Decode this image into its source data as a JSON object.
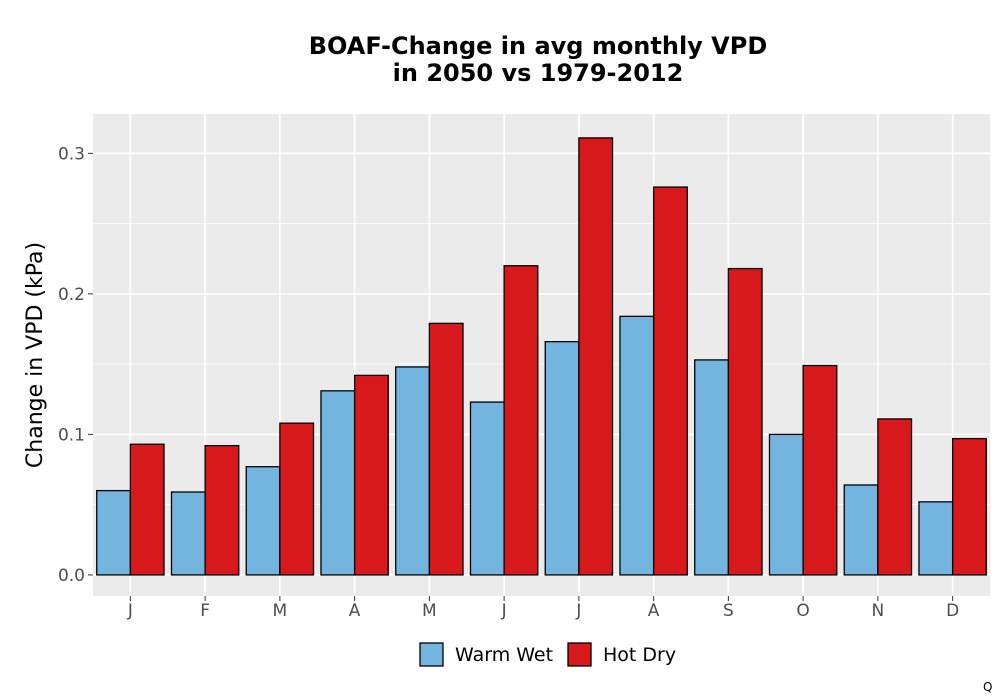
{
  "chart_data": {
    "type": "bar",
    "title_line1": "BOAF-Change in avg monthly VPD",
    "title_line2": "in 2050 vs 1979-2012",
    "xlabel": "",
    "ylabel": "Change in VPD (kPa)",
    "ylim": [
      -0.015,
      0.328
    ],
    "yticks": [
      0.0,
      0.1,
      0.2,
      0.3
    ],
    "ytick_labels": [
      "0.0",
      "0.1",
      "0.2",
      "0.3"
    ],
    "categories": [
      "J",
      "F",
      "M",
      "A",
      "M",
      "J",
      "J",
      "A",
      "S",
      "O",
      "N",
      "D"
    ],
    "series": [
      {
        "name": "Warm Wet",
        "color": "#74b5e0",
        "values": [
          0.06,
          0.059,
          0.077,
          0.131,
          0.148,
          0.123,
          0.166,
          0.184,
          0.153,
          0.1,
          0.064,
          0.052
        ]
      },
      {
        "name": "Hot Dry",
        "color": "#d7191c",
        "values": [
          0.093,
          0.092,
          0.108,
          0.142,
          0.179,
          0.22,
          0.311,
          0.276,
          0.218,
          0.149,
          0.111,
          0.097
        ]
      }
    ],
    "grid": true,
    "legend_position": "bottom",
    "panel_background": "#ebebeb",
    "gridline_color": "#ffffff"
  },
  "corner_mark": "Q"
}
